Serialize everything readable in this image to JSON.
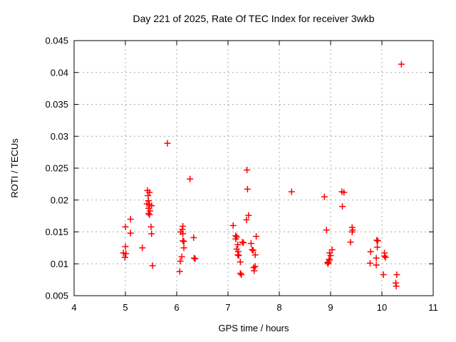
{
  "chart_data": {
    "type": "scatter",
    "title": "Day 221 of 2025, Rate Of TEC Index for receiver 3wkb",
    "xlabel": "GPS time / hours",
    "ylabel": "ROTI / TECUs",
    "xlim": [
      4,
      11
    ],
    "ylim": [
      0.005,
      0.045
    ],
    "xticks": [
      4,
      5,
      6,
      7,
      8,
      9,
      10,
      11
    ],
    "xtick_labels": [
      "4",
      "5",
      "6",
      "7",
      "8",
      "9",
      "10",
      "11"
    ],
    "yticks": [
      0.005,
      0.01,
      0.015,
      0.02,
      0.025,
      0.03,
      0.035,
      0.04,
      0.045
    ],
    "ytick_labels": [
      "0.005",
      "0.01",
      "0.015",
      "0.02",
      "0.025",
      "0.03",
      "0.035",
      "0.04",
      "0.045"
    ],
    "grid": true,
    "legend": "none",
    "marker": "plus",
    "marker_color": "#ff0000",
    "grid_color": "#a8a8a8",
    "axis_color": "#000000",
    "series": [
      {
        "name": "ROTI",
        "points": [
          [
            4.96,
            0.0117
          ],
          [
            4.99,
            0.011
          ],
          [
            5.0,
            0.0158
          ],
          [
            5.0,
            0.0127
          ],
          [
            5.01,
            0.0116
          ],
          [
            5.1,
            0.017
          ],
          [
            5.1,
            0.0148
          ],
          [
            5.33,
            0.0125
          ],
          [
            5.42,
            0.0194
          ],
          [
            5.43,
            0.0215
          ],
          [
            5.44,
            0.0207
          ],
          [
            5.45,
            0.0199
          ],
          [
            5.45,
            0.0187
          ],
          [
            5.45,
            0.0179
          ],
          [
            5.47,
            0.0212
          ],
          [
            5.47,
            0.0193
          ],
          [
            5.47,
            0.0177
          ],
          [
            5.48,
            0.0183
          ],
          [
            5.5,
            0.0158
          ],
          [
            5.51,
            0.0191
          ],
          [
            5.51,
            0.0147
          ],
          [
            5.53,
            0.0097
          ],
          [
            5.82,
            0.0289
          ],
          [
            6.06,
            0.0088
          ],
          [
            6.07,
            0.0104
          ],
          [
            6.08,
            0.015
          ],
          [
            6.1,
            0.0111
          ],
          [
            6.11,
            0.0154
          ],
          [
            6.12,
            0.0159
          ],
          [
            6.12,
            0.0147
          ],
          [
            6.12,
            0.0136
          ],
          [
            6.14,
            0.0135
          ],
          [
            6.14,
            0.0125
          ],
          [
            6.26,
            0.0233
          ],
          [
            6.33,
            0.0141
          ],
          [
            6.34,
            0.0109
          ],
          [
            6.36,
            0.0108
          ],
          [
            7.1,
            0.016
          ],
          [
            7.15,
            0.0144
          ],
          [
            7.15,
            0.0139
          ],
          [
            7.17,
            0.0142
          ],
          [
            7.17,
            0.0123
          ],
          [
            7.19,
            0.013
          ],
          [
            7.19,
            0.0114
          ],
          [
            7.2,
            0.0119
          ],
          [
            7.21,
            0.0113
          ],
          [
            7.24,
            0.0103
          ],
          [
            7.24,
            0.0085
          ],
          [
            7.26,
            0.0083
          ],
          [
            7.28,
            0.0134
          ],
          [
            7.3,
            0.0133
          ],
          [
            7.36,
            0.0169
          ],
          [
            7.37,
            0.0247
          ],
          [
            7.38,
            0.0217
          ],
          [
            7.4,
            0.0176
          ],
          [
            7.45,
            0.0132
          ],
          [
            7.47,
            0.0122
          ],
          [
            7.49,
            0.0121
          ],
          [
            7.5,
            0.0094
          ],
          [
            7.51,
            0.0089
          ],
          [
            7.53,
            0.0114
          ],
          [
            7.53,
            0.0096
          ],
          [
            7.55,
            0.0143
          ],
          [
            8.24,
            0.0213
          ],
          [
            8.88,
            0.0205
          ],
          [
            8.92,
            0.0153
          ],
          [
            8.94,
            0.0102
          ],
          [
            8.95,
            0.01
          ],
          [
            8.96,
            0.0103
          ],
          [
            8.97,
            0.0107
          ],
          [
            8.98,
            0.0117
          ],
          [
            8.98,
            0.0106
          ],
          [
            9.0,
            0.0113
          ],
          [
            9.03,
            0.0122
          ],
          [
            9.22,
            0.0213
          ],
          [
            9.23,
            0.019
          ],
          [
            9.26,
            0.0212
          ],
          [
            9.39,
            0.0134
          ],
          [
            9.42,
            0.0157
          ],
          [
            9.42,
            0.015
          ],
          [
            9.43,
            0.0153
          ],
          [
            9.77,
            0.0101
          ],
          [
            9.78,
            0.0119
          ],
          [
            9.89,
            0.0109
          ],
          [
            9.89,
            0.0098
          ],
          [
            9.9,
            0.0137
          ],
          [
            9.91,
            0.0126
          ],
          [
            9.92,
            0.0136
          ],
          [
            10.03,
            0.0083
          ],
          [
            10.05,
            0.0117
          ],
          [
            10.05,
            0.0112
          ],
          [
            10.07,
            0.011
          ],
          [
            10.27,
            0.007
          ],
          [
            10.28,
            0.0065
          ],
          [
            10.29,
            0.0083
          ],
          [
            10.38,
            0.0413
          ]
        ]
      }
    ]
  }
}
